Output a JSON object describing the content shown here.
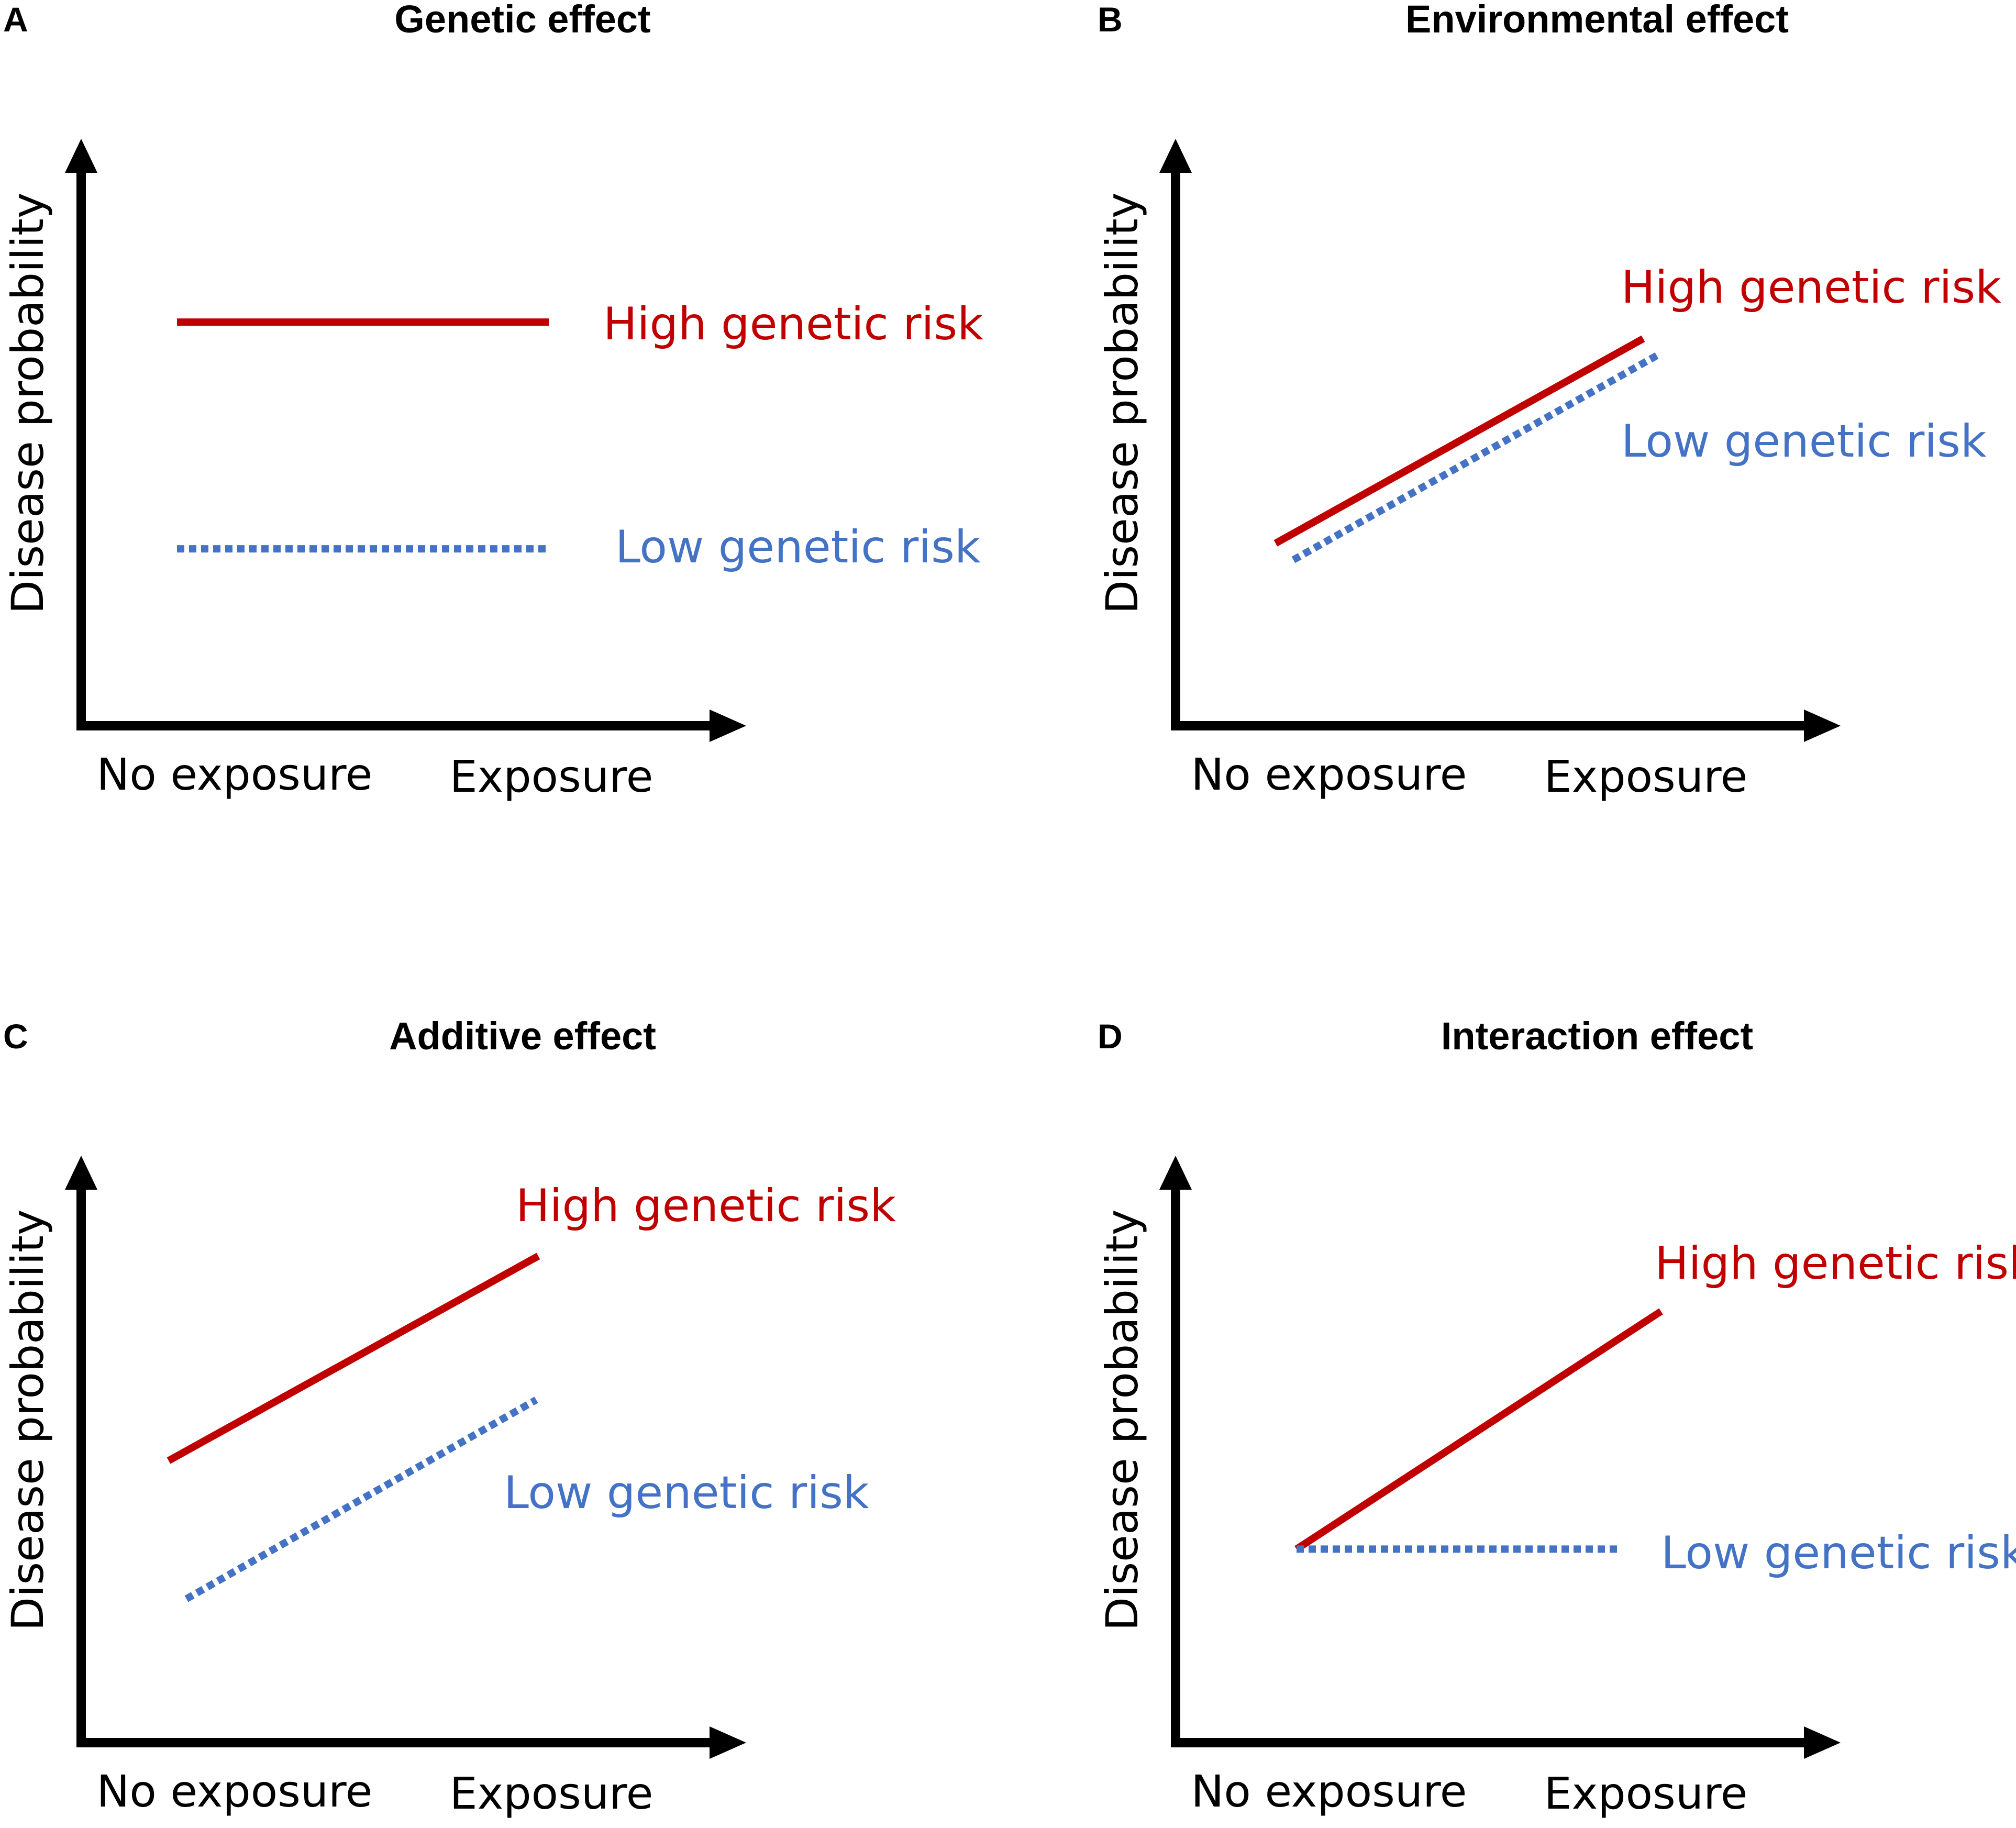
{
  "colors": {
    "high": "#c00000",
    "low": "#4472c4",
    "axis": "#000000"
  },
  "panels": [
    {
      "letter": "A",
      "title": "Genetic effect",
      "y_label": "Disease probability",
      "x_left_label": "No exposure",
      "x_right_label": "Exposure",
      "series": [
        {
          "name": "High genetic risk",
          "style": "solid",
          "color": "high",
          "y_no_exposure": 0.73,
          "y_exposure": 0.73
        },
        {
          "name": "Low genetic risk",
          "style": "dotted",
          "color": "low",
          "y_no_exposure": 0.32,
          "y_exposure": 0.32
        }
      ]
    },
    {
      "letter": "B",
      "title": "Environmental effect",
      "y_label": "Disease probability",
      "x_left_label": "No exposure",
      "x_right_label": "Exposure",
      "series": [
        {
          "name": "High genetic risk",
          "style": "solid",
          "color": "high",
          "y_no_exposure": 0.33,
          "y_exposure": 0.7
        },
        {
          "name": "Low genetic risk",
          "style": "dotted",
          "color": "low",
          "y_no_exposure": 0.3,
          "y_exposure": 0.67
        }
      ]
    },
    {
      "letter": "C",
      "title": "Additive effect",
      "y_label": "Disease probability",
      "x_left_label": "No exposure",
      "x_right_label": "Exposure",
      "series": [
        {
          "name": "High genetic risk",
          "style": "solid",
          "color": "high",
          "y_no_exposure": 0.51,
          "y_exposure": 0.88
        },
        {
          "name": "Low genetic risk",
          "style": "dotted",
          "color": "low",
          "y_no_exposure": 0.26,
          "y_exposure": 0.62
        }
      ]
    },
    {
      "letter": "D",
      "title": "Interaction effect",
      "y_label": "Disease probability",
      "x_left_label": "No exposure",
      "x_right_label": "Exposure",
      "series": [
        {
          "name": "High genetic risk",
          "style": "solid",
          "color": "high",
          "y_no_exposure": 0.35,
          "y_exposure": 0.78
        },
        {
          "name": "Low genetic risk",
          "style": "dotted",
          "color": "low",
          "y_no_exposure": 0.35,
          "y_exposure": 0.35
        }
      ]
    }
  ]
}
